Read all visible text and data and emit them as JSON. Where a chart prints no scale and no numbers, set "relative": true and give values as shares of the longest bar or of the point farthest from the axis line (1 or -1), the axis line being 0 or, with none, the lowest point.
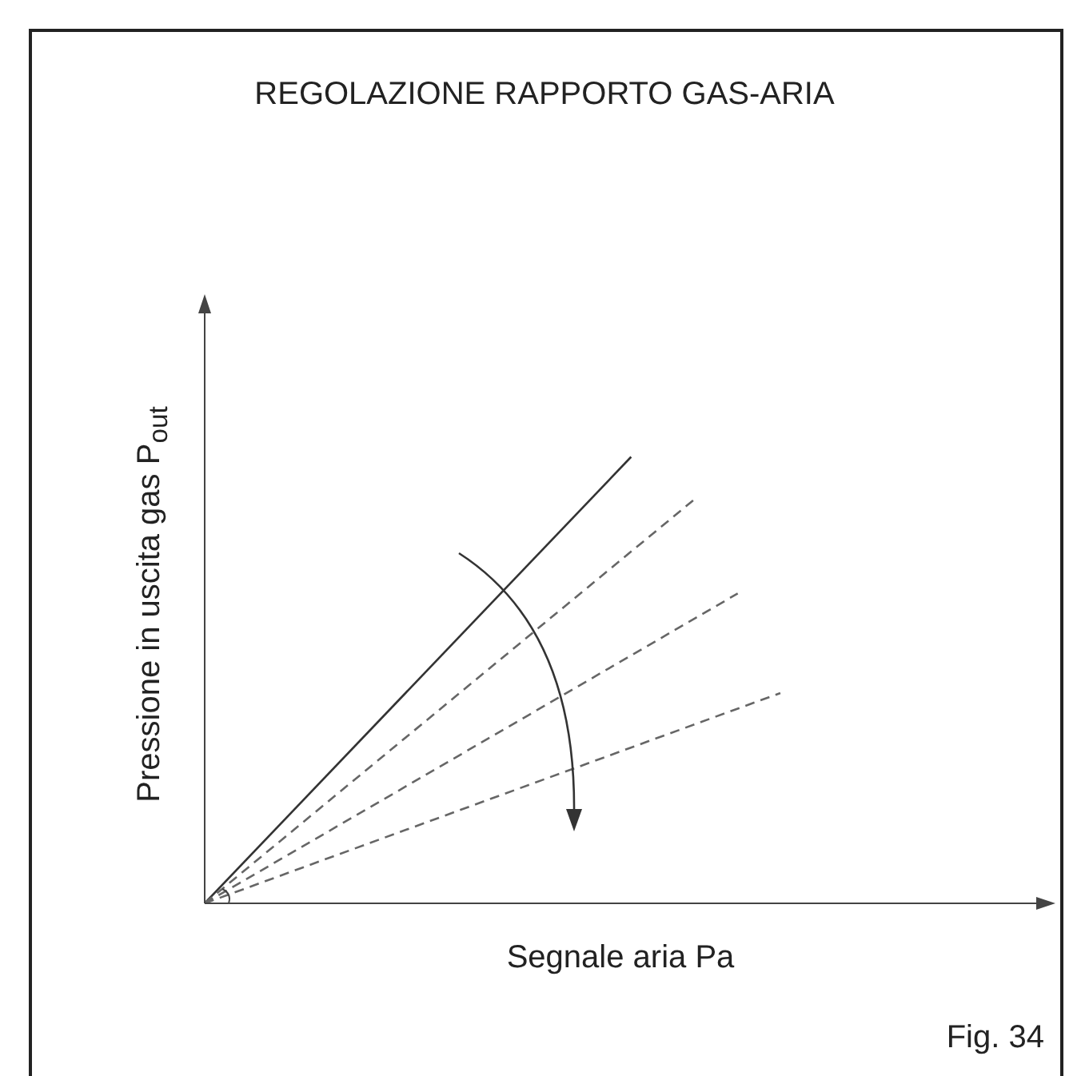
{
  "chart_data": {
    "type": "line",
    "title": "REGOLAZIONE RAPPORTO GAS-ARIA",
    "xlabel": "Segnale aria Pa",
    "ylabel": "Pressione in uscita gas P$_{out}$",
    "relative": true,
    "marker": "none",
    "grid": false,
    "annotations": [
      "Fig. 34"
    ],
    "categories": [
      null,
      null,
      null,
      null,
      null,
      null,
      null,
      null,
      null,
      null,
      null,
      null,
      null,
      null,
      null,
      null,
      null,
      null,
      null,
      null,
      null,
      null,
      null,
      null,
      null,
      null,
      null,
      null,
      null,
      null,
      null,
      null,
      null,
      null,
      null,
      null,
      null,
      null,
      null,
      null
    ],
    "series": [
      {
        "color": "#333333",
        "line_style": "solid",
        "values": [
          0,
          null,
          null,
          null,
          null,
          null,
          null,
          null,
          null,
          null,
          null,
          null,
          null,
          null,
          null,
          null,
          null,
          null,
          null,
          null,
          1,
          null,
          null,
          null,
          null,
          null,
          null,
          null,
          null,
          null,
          null,
          null,
          null,
          null,
          null,
          null,
          null,
          null,
          null,
          null
        ]
      },
      {
        "color": "#666666",
        "line_style": "dashed",
        "values": [
          0,
          null,
          null,
          null,
          null,
          null,
          null,
          null,
          null,
          null,
          null,
          null,
          null,
          null,
          null,
          null,
          null,
          null,
          null,
          null,
          null,
          null,
          null,
          0.906,
          null,
          null,
          null,
          null,
          null,
          null,
          null,
          null,
          null,
          null,
          null,
          null,
          null,
          null,
          null,
          null
        ]
      },
      {
        "color": "#666666",
        "line_style": "dashed",
        "values": [
          0,
          null,
          null,
          null,
          null,
          null,
          null,
          null,
          null,
          null,
          null,
          null,
          null,
          null,
          null,
          null,
          null,
          null,
          null,
          null,
          null,
          null,
          null,
          null,
          null,
          0.694,
          null,
          null,
          null,
          null,
          null,
          null,
          null,
          null,
          null,
          null,
          null,
          null,
          null,
          null
        ]
      },
      {
        "color": "#666666",
        "line_style": "dashed",
        "values": [
          0,
          null,
          null,
          null,
          null,
          null,
          null,
          null,
          null,
          null,
          null,
          null,
          null,
          null,
          null,
          null,
          null,
          null,
          null,
          null,
          null,
          null,
          null,
          null,
          null,
          null,
          null,
          0.471,
          null,
          null,
          null,
          null,
          null,
          null,
          null,
          null,
          null,
          null,
          null,
          null
        ]
      }
    ]
  }
}
